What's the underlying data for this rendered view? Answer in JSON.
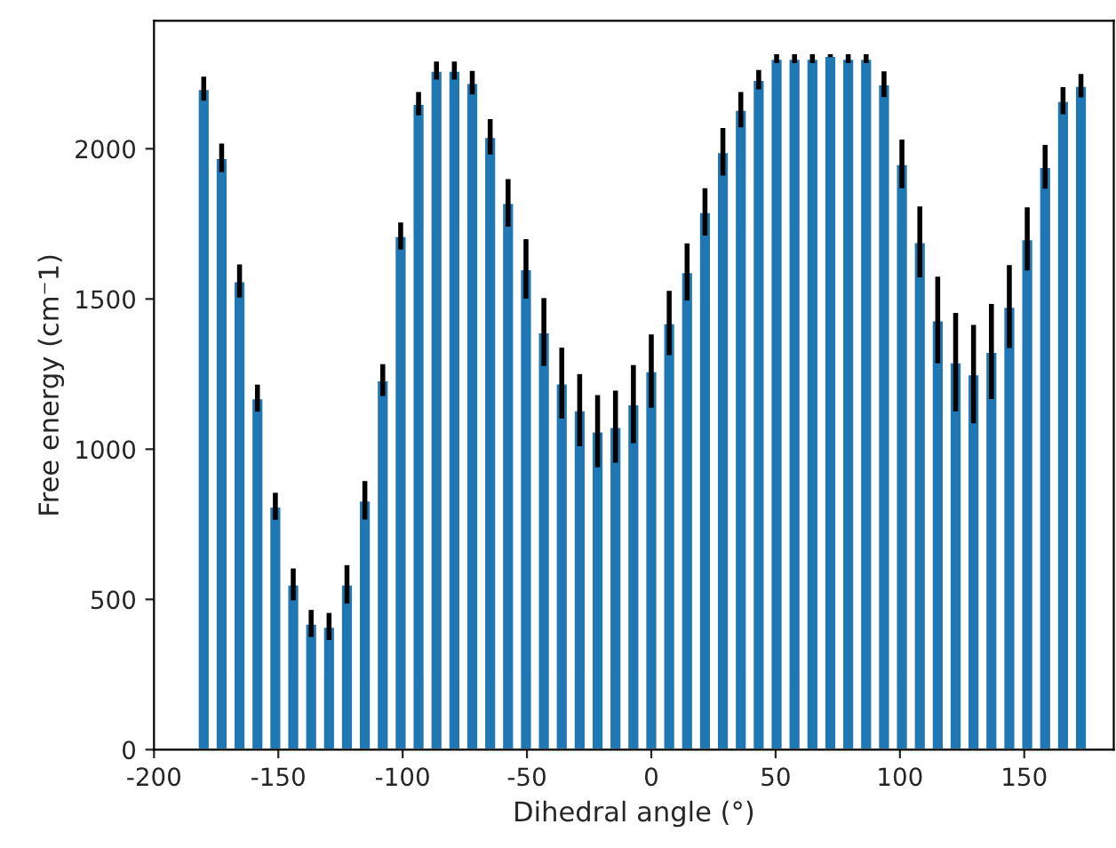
{
  "chart_data": {
    "type": "bar",
    "xlabel": "Dihedral angle (°)",
    "ylabel": "Free energy (cm⁻1)",
    "x": [
      -180,
      -172.8,
      -165.6,
      -158.4,
      -151.2,
      -144,
      -136.8,
      -129.6,
      -122.4,
      -115.2,
      -108,
      -100.8,
      -93.6,
      -86.4,
      -79.2,
      -72,
      -64.8,
      -57.6,
      -50.4,
      -43.2,
      -36,
      -28.8,
      -21.6,
      -14.4,
      -7.2,
      0,
      7.2,
      14.4,
      21.6,
      28.8,
      36,
      43.2,
      50.4,
      57.6,
      64.8,
      72,
      79.2,
      86.4,
      93.6,
      100.8,
      108,
      115.2,
      122.4,
      129.6,
      136.8,
      144,
      151.2,
      158.4,
      165.6,
      172.8
    ],
    "series": [
      {
        "color": "#1f77b4",
        "values": [
          2200,
          1970,
          1560,
          1170,
          810,
          550,
          420,
          410,
          550,
          830,
          1230,
          1710,
          2150,
          2260,
          2260,
          2220,
          2040,
          1820,
          1600,
          1390,
          1220,
          1130,
          1060,
          1075,
          1150,
          1260,
          1420,
          1590,
          1790,
          1990,
          2130,
          2230,
          2300,
          2300,
          2300,
          2310,
          2300,
          2300,
          2215,
          1950,
          1690,
          1430,
          1290,
          1250,
          1325,
          1475,
          1700,
          1940,
          2160,
          2210
        ],
        "errors": [
          40,
          47,
          55,
          45,
          45,
          53,
          45,
          45,
          64,
          64,
          53,
          45,
          39,
          30,
          30,
          39,
          59,
          79,
          99,
          113,
          118,
          120,
          120,
          120,
          130,
          122,
          107,
          95,
          79,
          79,
          59,
          32,
          15,
          15,
          15,
          5,
          15,
          15,
          43,
          81,
          118,
          144,
          164,
          164,
          158,
          138,
          105,
          73,
          45,
          39
        ]
      }
    ],
    "xlim": [
      -200,
      186
    ],
    "ylim": [
      0,
      2426
    ],
    "xticks": [
      -200,
      -150,
      -100,
      -50,
      0,
      50,
      100,
      150
    ],
    "yticks": [
      0,
      500,
      1000,
      1500,
      2000
    ],
    "grid": false
  }
}
